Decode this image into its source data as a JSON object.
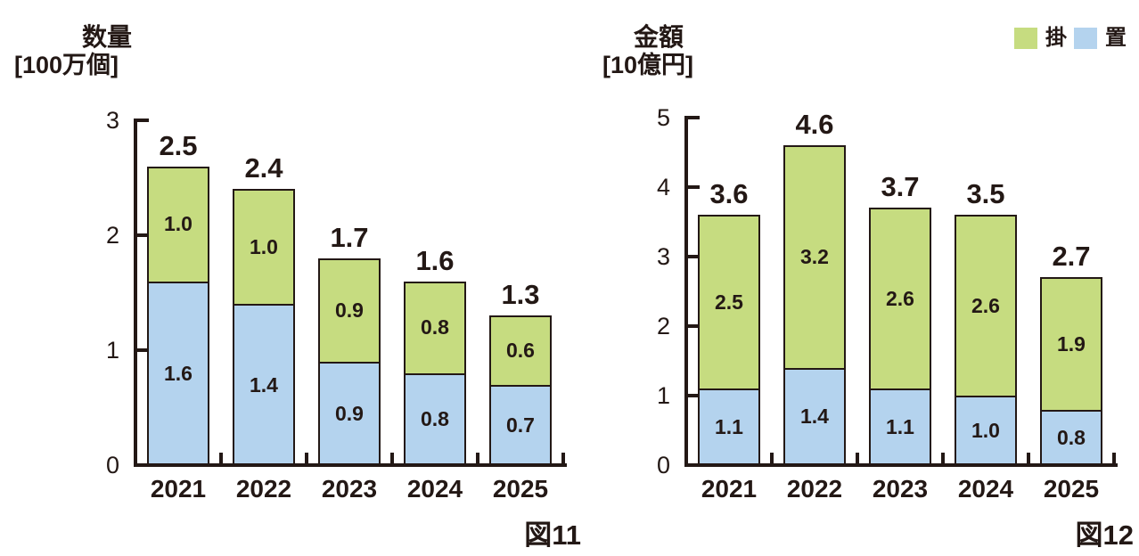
{
  "palette": {
    "ink": "#231815",
    "kake_green": "#c6dc80",
    "oki_blue": "#b4d3ee",
    "background": "#ffffff"
  },
  "legend": {
    "items": [
      {
        "key": "kake",
        "label": "掛",
        "color": "#c6dc80"
      },
      {
        "key": "oki",
        "label": "置",
        "color": "#b4d3ee"
      }
    ]
  },
  "chart_data": [
    {
      "key": "quantity",
      "type": "bar",
      "stacked": true,
      "title": "数量",
      "unit_label": "[100万個]",
      "caption": "図11",
      "categories": [
        "2021",
        "2022",
        "2023",
        "2024",
        "2025"
      ],
      "series": [
        {
          "key": "oki",
          "name": "置",
          "color": "#b4d3ee",
          "values": [
            1.6,
            1.4,
            0.9,
            0.8,
            0.7
          ],
          "labels": [
            "1.6",
            "1.4",
            "0.9",
            "0.8",
            "0.7"
          ]
        },
        {
          "key": "kake",
          "name": "掛",
          "color": "#c6dc80",
          "values": [
            1.0,
            1.0,
            0.9,
            0.8,
            0.6
          ],
          "labels": [
            "1.0",
            "1.0",
            "0.9",
            "0.8",
            "0.6"
          ]
        }
      ],
      "total_labels": [
        "2.5",
        "2.4",
        "1.7",
        "1.6",
        "1.3"
      ],
      "ylim": [
        0,
        3
      ],
      "yticks": [
        "0",
        "1",
        "2",
        "3"
      ],
      "grid": false,
      "legend_position": "top-right-shared"
    },
    {
      "key": "amount",
      "type": "bar",
      "stacked": true,
      "title": "金額",
      "unit_label": "[10億円]",
      "caption": "図12",
      "categories": [
        "2021",
        "2022",
        "2023",
        "2024",
        "2025"
      ],
      "series": [
        {
          "key": "oki",
          "name": "置",
          "color": "#b4d3ee",
          "values": [
            1.1,
            1.4,
            1.1,
            1.0,
            0.8
          ],
          "labels": [
            "1.1",
            "1.4",
            "1.1",
            "1.0",
            "0.8"
          ]
        },
        {
          "key": "kake",
          "name": "掛",
          "color": "#c6dc80",
          "values": [
            2.5,
            3.2,
            2.6,
            2.6,
            1.9
          ],
          "labels": [
            "2.5",
            "3.2",
            "2.6",
            "2.6",
            "1.9"
          ]
        }
      ],
      "total_labels": [
        "3.6",
        "4.6",
        "3.7",
        "3.5",
        "2.7"
      ],
      "ylim": [
        0,
        5
      ],
      "yticks": [
        "0",
        "1",
        "2",
        "3",
        "4",
        "5"
      ],
      "grid": false,
      "legend_position": "top-right-shared"
    }
  ]
}
